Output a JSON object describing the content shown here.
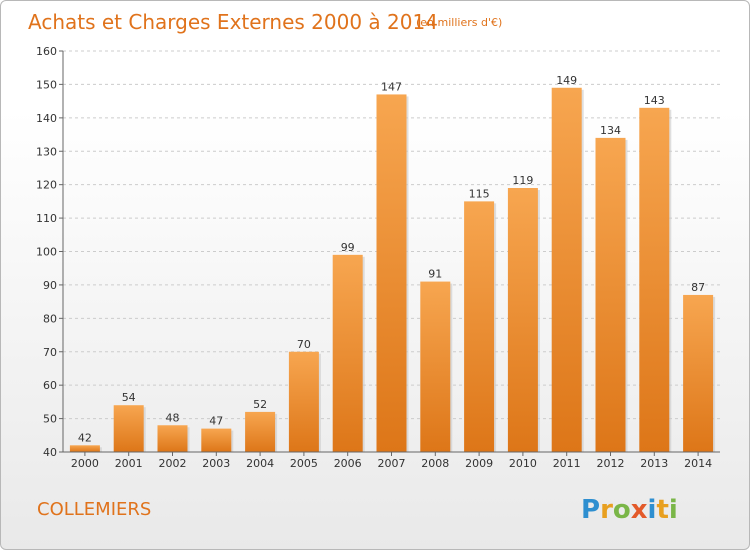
{
  "header": {
    "title": "Achats et Charges Externes 2000 à 2014",
    "subtitle": "(en milliers d'€)"
  },
  "footer": {
    "commune": "COLLEMIERS",
    "logo_letters": [
      "P",
      "r",
      "o",
      "x",
      "i",
      "t",
      "i"
    ],
    "logo_colors": [
      "#2e8fd0",
      "#e8a020",
      "#7ab648",
      "#e35a2a",
      "#2e8fd0",
      "#e8a020",
      "#7ab648"
    ]
  },
  "colors": {
    "bar_light": "#f7a650",
    "bar_dark": "#dd7618",
    "title": "#e0731c",
    "grid": "#cccccc"
  },
  "chart_data": {
    "type": "bar",
    "title": "Achats et Charges Externes 2000 à 2014",
    "subtitle": "(en milliers d'€)",
    "categories": [
      "2000",
      "2001",
      "2002",
      "2003",
      "2004",
      "2005",
      "2006",
      "2007",
      "2008",
      "2009",
      "2010",
      "2011",
      "2012",
      "2013",
      "2014"
    ],
    "values": [
      42,
      54,
      48,
      47,
      52,
      70,
      99,
      147,
      91,
      115,
      119,
      149,
      134,
      143,
      87
    ],
    "ylim": [
      40,
      160
    ],
    "yticks": [
      40,
      50,
      60,
      70,
      80,
      90,
      100,
      110,
      120,
      130,
      140,
      150,
      160
    ],
    "xlabel": "",
    "ylabel": "",
    "grid": "horizontal-dashed",
    "data_labels": true
  }
}
